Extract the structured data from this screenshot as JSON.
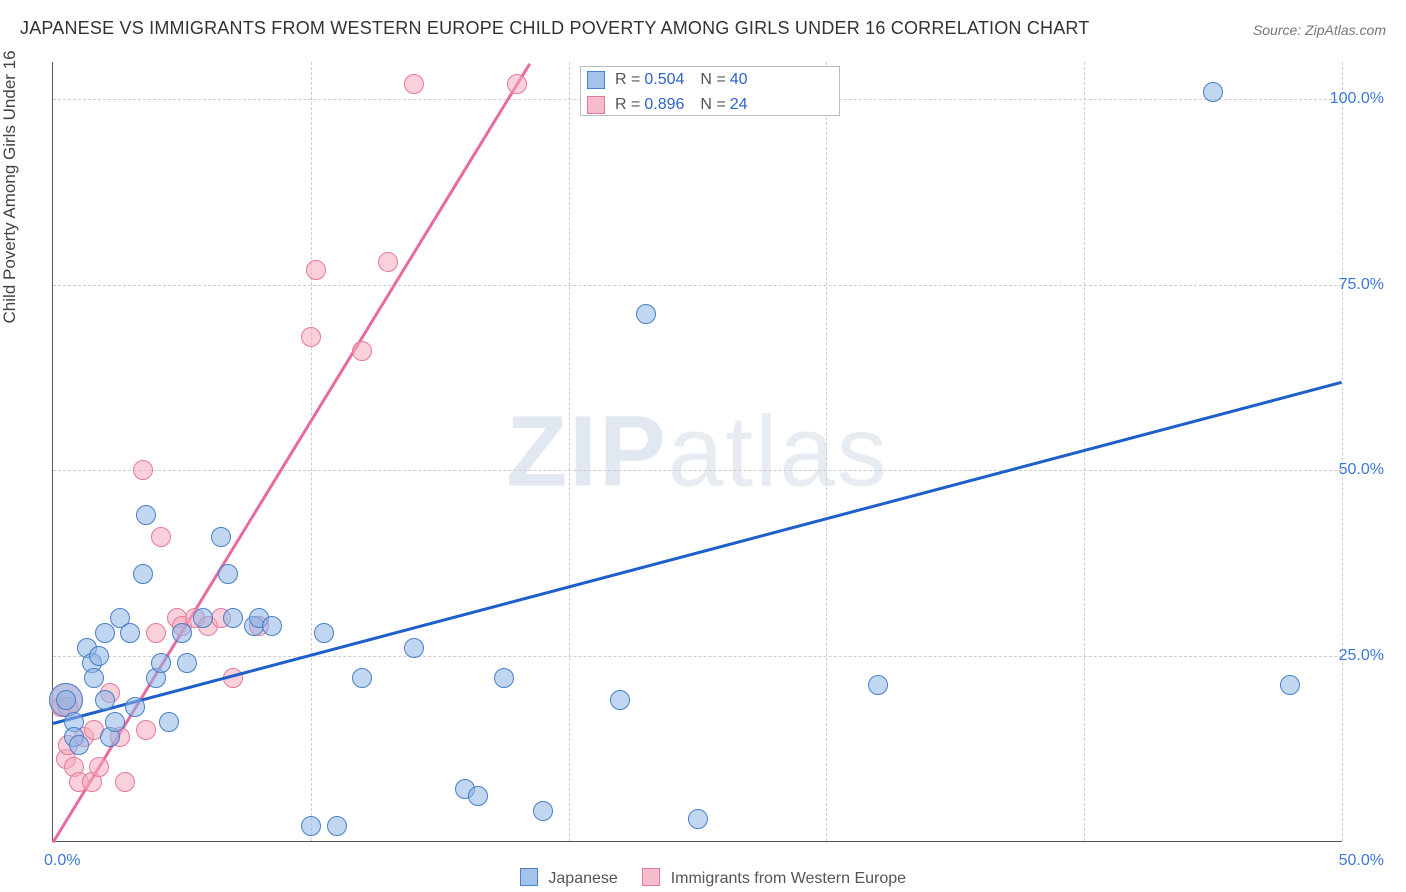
{
  "title": "JAPANESE VS IMMIGRANTS FROM WESTERN EUROPE CHILD POVERTY AMONG GIRLS UNDER 16 CORRELATION CHART",
  "source": "Source: ZipAtlas.com",
  "ylabel": "Child Poverty Among Girls Under 16",
  "watermark_bold": "ZIP",
  "watermark_light": "atlas",
  "chart": {
    "type": "scatter",
    "xlim": [
      0,
      50
    ],
    "ylim": [
      0,
      105
    ],
    "xticks": [
      {
        "v": 0,
        "label": "0.0%"
      },
      {
        "v": 50,
        "label": "50.0%"
      }
    ],
    "yticks": [
      {
        "v": 25,
        "label": "25.0%"
      },
      {
        "v": 50,
        "label": "50.0%"
      },
      {
        "v": 75,
        "label": "75.0%"
      },
      {
        "v": 100,
        "label": "100.0%"
      }
    ],
    "vgrid_at": [
      10,
      20,
      30,
      40,
      50
    ],
    "background_color": "#ffffff",
    "grid_color": "#cccccc",
    "axis_color": "#555555",
    "marker_radius": 10,
    "marker_radius_big": 17,
    "trend_width": 3,
    "series": [
      {
        "name": "Japanese",
        "fill": "rgba(140,180,230,0.55)",
        "stroke": "#4a80c8",
        "trend_color": "#1f5fc9",
        "R": "0.504",
        "N": "40",
        "trend": {
          "x1": 0,
          "y1": 16,
          "x2": 50,
          "y2": 62
        },
        "points_big": [
          [
            0.5,
            19
          ]
        ],
        "points": [
          [
            0.5,
            19
          ],
          [
            0.8,
            16
          ],
          [
            0.8,
            14
          ],
          [
            1,
            13
          ],
          [
            1.3,
            26
          ],
          [
            1.5,
            24
          ],
          [
            1.6,
            22
          ],
          [
            1.8,
            25
          ],
          [
            2,
            19
          ],
          [
            2,
            28
          ],
          [
            2.2,
            14
          ],
          [
            2.4,
            16
          ],
          [
            2.6,
            30
          ],
          [
            3,
            28
          ],
          [
            3.2,
            18
          ],
          [
            3.5,
            36
          ],
          [
            3.6,
            44
          ],
          [
            4,
            22
          ],
          [
            4.2,
            24
          ],
          [
            4.5,
            16
          ],
          [
            5,
            28
          ],
          [
            5.2,
            24
          ],
          [
            5.8,
            30
          ],
          [
            6.5,
            41
          ],
          [
            6.8,
            36
          ],
          [
            7,
            30
          ],
          [
            7.8,
            29
          ],
          [
            8,
            30
          ],
          [
            8.5,
            29
          ],
          [
            10,
            2
          ],
          [
            10.5,
            28
          ],
          [
            11,
            2
          ],
          [
            12,
            22
          ],
          [
            14,
            26
          ],
          [
            16,
            7
          ],
          [
            16.5,
            6
          ],
          [
            17.5,
            22
          ],
          [
            19,
            4
          ],
          [
            22,
            19
          ],
          [
            23,
            71
          ],
          [
            25,
            3
          ],
          [
            32,
            21
          ],
          [
            45,
            101
          ],
          [
            48,
            21
          ]
        ]
      },
      {
        "name": "Immigrants from Western Europe",
        "fill": "rgba(245,170,190,0.55)",
        "stroke": "#e57a9a",
        "trend_color": "#e86aa0",
        "R": "0.896",
        "N": "24",
        "trend": {
          "x1": 0,
          "y1": 0,
          "x2": 18.5,
          "y2": 105
        },
        "points_big": [
          [
            0.5,
            19
          ]
        ],
        "points": [
          [
            0.3,
            18
          ],
          [
            0.5,
            11
          ],
          [
            0.6,
            13
          ],
          [
            0.6,
            18
          ],
          [
            0.8,
            10
          ],
          [
            1,
            8
          ],
          [
            1.2,
            14
          ],
          [
            1.5,
            8
          ],
          [
            1.6,
            15
          ],
          [
            1.8,
            10
          ],
          [
            2.2,
            20
          ],
          [
            2.6,
            14
          ],
          [
            2.8,
            8
          ],
          [
            3.5,
            50
          ],
          [
            3.6,
            15
          ],
          [
            4,
            28
          ],
          [
            4.2,
            41
          ],
          [
            4.8,
            30
          ],
          [
            5,
            29
          ],
          [
            5.5,
            30
          ],
          [
            6,
            29
          ],
          [
            6.5,
            30
          ],
          [
            7,
            22
          ],
          [
            8,
            29
          ],
          [
            10,
            68
          ],
          [
            10.2,
            77
          ],
          [
            12,
            66
          ],
          [
            13,
            78
          ],
          [
            14,
            102
          ],
          [
            18,
            102
          ]
        ]
      }
    ]
  },
  "stat_legend": {
    "r_label": "R =",
    "n_label": "N ="
  },
  "bottom_legend": {
    "items": [
      "Japanese",
      "Immigrants from Western Europe"
    ]
  }
}
